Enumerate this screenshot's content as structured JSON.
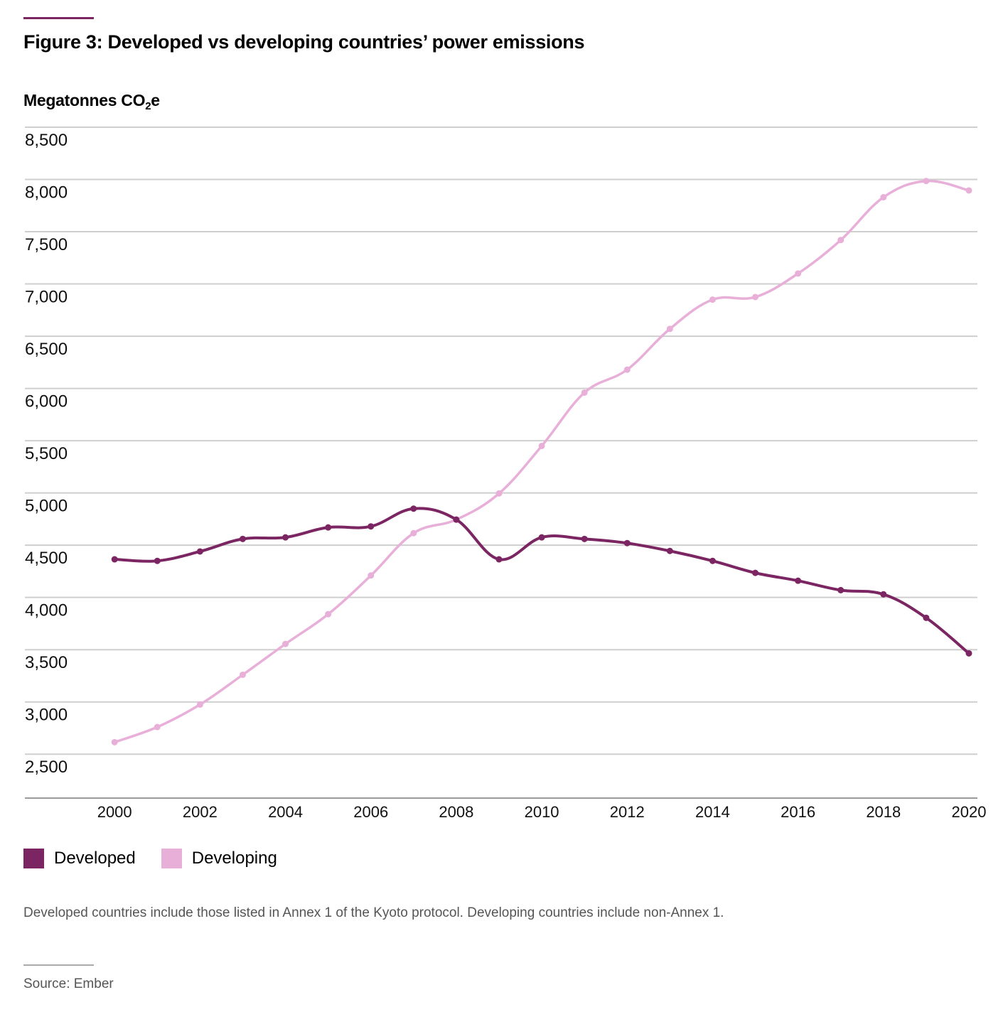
{
  "header": {
    "title": "Figure 3: Developed vs developing countries’ power emissions",
    "ylabel_main": "Megatonnes CO",
    "ylabel_sub": "2",
    "ylabel_tail": "e"
  },
  "colors": {
    "accent": "#7b2562",
    "developed": "#7b2562",
    "developing": "#e8afd8",
    "grid": "#cfcfcf",
    "axis": "#9a9a9a"
  },
  "chart_data": {
    "type": "line",
    "title": "Figure 3: Developed vs developing countries’ power emissions",
    "xlabel": "",
    "ylabel": "Megatonnes CO2e",
    "x": [
      2000,
      2001,
      2002,
      2003,
      2004,
      2005,
      2006,
      2007,
      2008,
      2009,
      2010,
      2011,
      2012,
      2013,
      2014,
      2015,
      2016,
      2017,
      2018,
      2019,
      2020
    ],
    "x_ticks": [
      "2000",
      "2002",
      "2004",
      "2006",
      "2008",
      "2010",
      "2012",
      "2014",
      "2016",
      "2018",
      "2020"
    ],
    "y_ticks": [
      "2,500",
      "3,000",
      "3,500",
      "4,000",
      "4,500",
      "5,000",
      "5,500",
      "6,000",
      "6,500",
      "7,000",
      "7,500",
      "8,000",
      "8,500"
    ],
    "y_tick_values": [
      2500,
      3000,
      3500,
      4000,
      4500,
      5000,
      5500,
      6000,
      6500,
      7000,
      7500,
      8000,
      8500
    ],
    "ylim": [
      2080,
      8500
    ],
    "xlim": [
      1997.9,
      2020.2
    ],
    "grid": true,
    "legend_position": "bottom-left",
    "series": [
      {
        "name": "Developed",
        "color": "#7b2562",
        "values": [
          4365,
          4350,
          4440,
          4560,
          4575,
          4670,
          4680,
          4850,
          4745,
          4365,
          4575,
          4560,
          4520,
          4445,
          4350,
          4235,
          4160,
          4070,
          4030,
          3805,
          3465
        ]
      },
      {
        "name": "Developing",
        "color": "#e8afd8",
        "values": [
          2615,
          2760,
          2975,
          3260,
          3555,
          3840,
          4210,
          4615,
          4745,
          4995,
          5450,
          5960,
          6180,
          6570,
          6850,
          6875,
          7100,
          7420,
          7830,
          7985,
          7895
        ]
      }
    ]
  },
  "legend": {
    "items": [
      {
        "label": "Developed",
        "color": "#7b2562"
      },
      {
        "label": "Developing",
        "color": "#e8afd8"
      }
    ]
  },
  "footer": {
    "note": "Developed countries include those listed in Annex 1 of the Kyoto protocol. Developing countries include non-Annex 1.",
    "source": "Source: Ember"
  }
}
